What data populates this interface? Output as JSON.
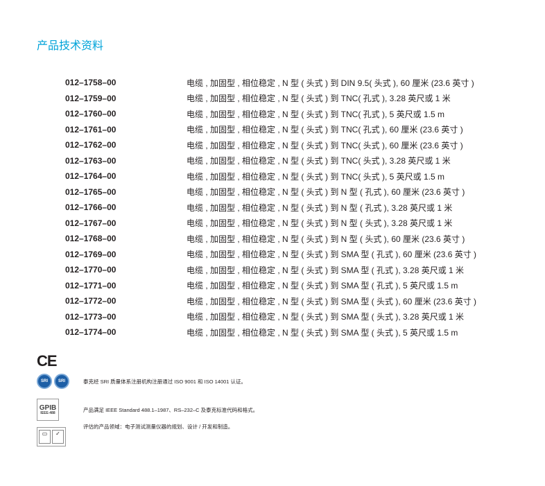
{
  "title": "产品技术资料",
  "items": [
    {
      "pn": "012–1758–00",
      "desc": "电缆 , 加固型 , 相位稳定 , N 型 ( 头式 ) 到 DIN 9.5( 头式 ), 60 厘米 (23.6 英寸 )"
    },
    {
      "pn": "012–1759–00",
      "desc": "电缆 , 加固型 , 相位稳定 , N 型 ( 头式 ) 到 TNC( 孔式 ), 3.28 英尺或 1 米"
    },
    {
      "pn": "012–1760–00",
      "desc": "电缆 , 加固型 , 相位稳定 , N 型 ( 头式 ) 到 TNC( 孔式 ), 5 英尺或 1.5 m"
    },
    {
      "pn": "012–1761–00",
      "desc": "电缆 , 加固型 , 相位稳定 , N 型 ( 头式 ) 到 TNC( 孔式 ), 60 厘米 (23.6 英寸 )"
    },
    {
      "pn": "012–1762–00",
      "desc": "电缆 , 加固型 , 相位稳定 , N 型 ( 头式 ) 到 TNC( 头式 ), 60 厘米 (23.6 英寸 )"
    },
    {
      "pn": "012–1763–00",
      "desc": " 电缆 , 加固型 , 相位稳定 , N 型 ( 头式 ) 到 TNC( 头式 ), 3.28 英尺或 1 米"
    },
    {
      "pn": "012–1764–00",
      "desc": "电缆 , 加固型 , 相位稳定 , N 型 ( 头式 ) 到 TNC( 头式 ), 5 英尺或 1.5 m"
    },
    {
      "pn": "012–1765–00",
      "desc": "电缆 , 加固型 , 相位稳定 , N 型 ( 头式 ) 到 N 型 ( 孔式 ), 60 厘米 (23.6 英寸 )"
    },
    {
      "pn": "012–1766–00",
      "desc": "电缆 , 加固型 , 相位稳定 , N 型 ( 头式 ) 到 N 型 ( 孔式 ), 3.28 英尺或 1 米"
    },
    {
      "pn": "012–1767–00",
      "desc": "电缆 , 加固型 , 相位稳定 , N 型 ( 头式 ) 到 N 型 ( 头式 ), 3.28 英尺或 1 米"
    },
    {
      "pn": "012–1768–00",
      "desc": "电缆 , 加固型 , 相位稳定 , N 型 ( 头式 ) 到 N 型 ( 头式 ), 60 厘米 (23.6 英寸 )"
    },
    {
      "pn": "012–1769–00",
      "desc": "电缆 , 加固型 , 相位稳定 , N 型 ( 头式 ) 到 SMA 型 ( 孔式 ), 60 厘米 (23.6 英寸 )"
    },
    {
      "pn": "012–1770–00",
      "desc": "电缆 , 加固型 , 相位稳定 , N 型 ( 头式 ) 到 SMA 型 ( 孔式 ), 3.28 英尺或 1 米"
    },
    {
      "pn": "012–1771–00",
      "desc": "电缆 , 加固型 , 相位稳定 , N 型 ( 头式 ) 到 SMA 型 ( 孔式 ), 5 英尺或 1.5 m"
    },
    {
      "pn": "012–1772–00",
      "desc": "电缆 , 加固型 , 相位稳定 , N 型 ( 头式 ) 到 SMA 型 ( 头式 ), 60 厘米 (23.6 英寸 )"
    },
    {
      "pn": "012–1773–00",
      "desc": "电缆 , 加固型 , 相位稳定 , N 型 ( 头式 ) 到 SMA 型 ( 头式 ), 3.28 英尺或 1 米"
    },
    {
      "pn": "012–1774–00",
      "desc": "电缆 , 加固型 , 相位稳定 , N 型 ( 头式 ) 到 SMA 型 ( 头式 ), 5 英尺或 1.5 m"
    }
  ],
  "certs": {
    "ce": "CE",
    "sri_logo": "SRI",
    "sri_text": "泰克经 SRI 质量体系注册机构注册通过 ISO 9001 和 ISO 14001 认证。",
    "gpib_logo": "GPIB",
    "gpib_sub": "IEEE-488",
    "gpib_text": "产品满足 IEEE Standard 488.1–1987、RS–232–C 及泰克标准代码和格式。",
    "iso_text": "评估的产品领域：电子测试测量仪器的规划、设计 / 开发和制造。"
  },
  "colors": {
    "title": "#00a3d9",
    "sri": "#1d5fa6"
  }
}
